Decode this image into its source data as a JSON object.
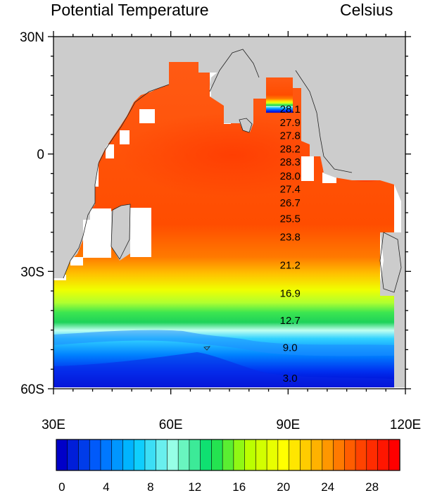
{
  "title": "Potential Temperature",
  "units": "Celsius",
  "map": {
    "lon_range": [
      30,
      120
    ],
    "lat_range": [
      -60,
      30
    ],
    "lon_ticks": [
      "30E",
      "60E",
      "90E",
      "120E"
    ],
    "lat_ticks": [
      "30N",
      "0",
      "30S",
      "60S"
    ],
    "colors": {
      "land": "#cccccc",
      "missing": "#ffffff",
      "ocean_background": "#ff5a14"
    }
  },
  "annotations": [
    {
      "lon": 88,
      "lat": 11.5,
      "label": "28.1"
    },
    {
      "lon": 88,
      "lat": 8.0,
      "label": "27.9"
    },
    {
      "lon": 88,
      "lat": 4.7,
      "label": "27.8"
    },
    {
      "lon": 88,
      "lat": 1.3,
      "label": "28.2"
    },
    {
      "lon": 88,
      "lat": -2.0,
      "label": "28.3"
    },
    {
      "lon": 88,
      "lat": -5.6,
      "label": "28.0"
    },
    {
      "lon": 88,
      "lat": -9.0,
      "label": "27.4"
    },
    {
      "lon": 88,
      "lat": -12.5,
      "label": "26.7"
    },
    {
      "lon": 88,
      "lat": -16.5,
      "label": "25.5"
    },
    {
      "lon": 88,
      "lat": -21.2,
      "label": "23.8"
    },
    {
      "lon": 88,
      "lat": -28.4,
      "label": "21.2"
    },
    {
      "lon": 88,
      "lat": -35.6,
      "label": "16.9"
    },
    {
      "lon": 88,
      "lat": -42.5,
      "label": "12.7"
    },
    {
      "lon": 88,
      "lat": -49.5,
      "label": "9.0"
    },
    {
      "lon": 88,
      "lat": -57.3,
      "label": "3.0"
    }
  ],
  "colorbar": {
    "min": 0,
    "max": 31,
    "ticks": [
      "0",
      "4",
      "8",
      "12",
      "16",
      "20",
      "24",
      "28"
    ],
    "stops": [
      "#0000c8",
      "#0064ff",
      "#00c8ff",
      "#96ffe6",
      "#00dc64",
      "#b4ff00",
      "#ffff00",
      "#ffaa00",
      "#ff4a00",
      "#ff0000"
    ]
  }
}
